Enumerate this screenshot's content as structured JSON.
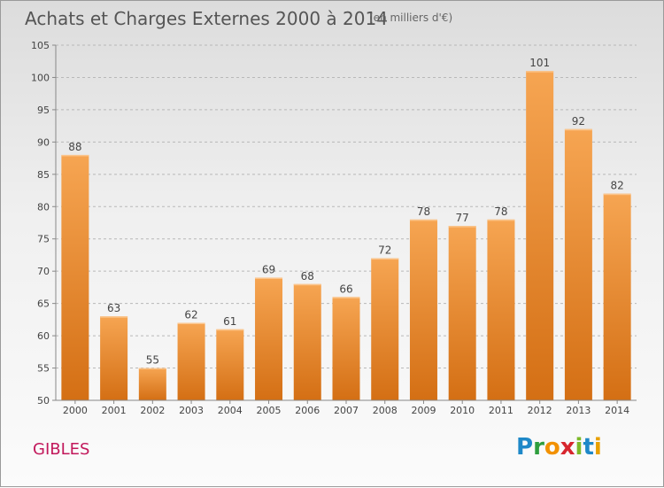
{
  "header": {
    "title": "Achats et Charges Externes 2000 à 2014",
    "unit": "(en milliers d'€)"
  },
  "footer": {
    "commune": "GIBLES",
    "brand": "Proxiti"
  },
  "colors": {
    "bar_light": "#f6a552",
    "bar_dark": "#d46f14",
    "axis": "#888888",
    "grid": "#b8b8b8"
  },
  "chart_data": {
    "type": "bar",
    "title": "Achats et Charges Externes 2000 à 2014",
    "subtitle": "(en milliers d'€)",
    "xlabel": "",
    "ylabel": "",
    "categories": [
      "2000",
      "2001",
      "2002",
      "2003",
      "2004",
      "2005",
      "2006",
      "2007",
      "2008",
      "2009",
      "2010",
      "2011",
      "2012",
      "2013",
      "2014"
    ],
    "values": [
      88,
      63,
      55,
      62,
      61,
      69,
      68,
      66,
      72,
      78,
      77,
      78,
      101,
      92,
      82
    ],
    "ylim": [
      50,
      105
    ],
    "yticks": [
      50,
      55,
      60,
      65,
      70,
      75,
      80,
      85,
      90,
      95,
      100,
      105
    ],
    "grid": true,
    "data_labels": true
  }
}
